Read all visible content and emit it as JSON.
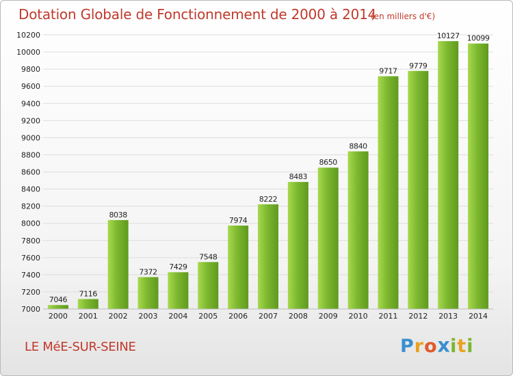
{
  "chart_data": {
    "type": "bar",
    "title": "Dotation Globale de Fonctionnement de 2000 à 2014",
    "unit_note": "(en milliers d'€)",
    "categories": [
      "2000",
      "2001",
      "2002",
      "2003",
      "2004",
      "2005",
      "2006",
      "2007",
      "2008",
      "2009",
      "2010",
      "2011",
      "2012",
      "2013",
      "2014"
    ],
    "values": [
      7046,
      7116,
      8038,
      7372,
      7429,
      7548,
      7974,
      8222,
      8483,
      8650,
      8840,
      9717,
      9779,
      10127,
      10099
    ],
    "ylim": [
      7000,
      10200
    ],
    "yticks": [
      "7000",
      "7200",
      "7400",
      "7600",
      "7800",
      "8000",
      "8200",
      "8400",
      "8600",
      "8800",
      "9000",
      "9200",
      "9400",
      "9600",
      "9800",
      "10000",
      "10200"
    ],
    "grid": true,
    "bar_color": "#7cb82f",
    "bar_color_light": "#a8d94e",
    "bar_color_dark": "#5f9a1e"
  },
  "commune": "LE MéE-SUR-SEINE",
  "logo": {
    "letters": [
      "P",
      "r",
      "o",
      "x",
      "i",
      "t",
      "i"
    ],
    "colors": [
      "#3a8fd0",
      "#e8a21f",
      "#e05a2a",
      "#3a8fd0",
      "#7ab62e",
      "#e8a21f",
      "#7ab62e"
    ]
  },
  "colors": {
    "title": "#c0392b",
    "axis_text": "#222222",
    "grid": "#dddddd"
  }
}
